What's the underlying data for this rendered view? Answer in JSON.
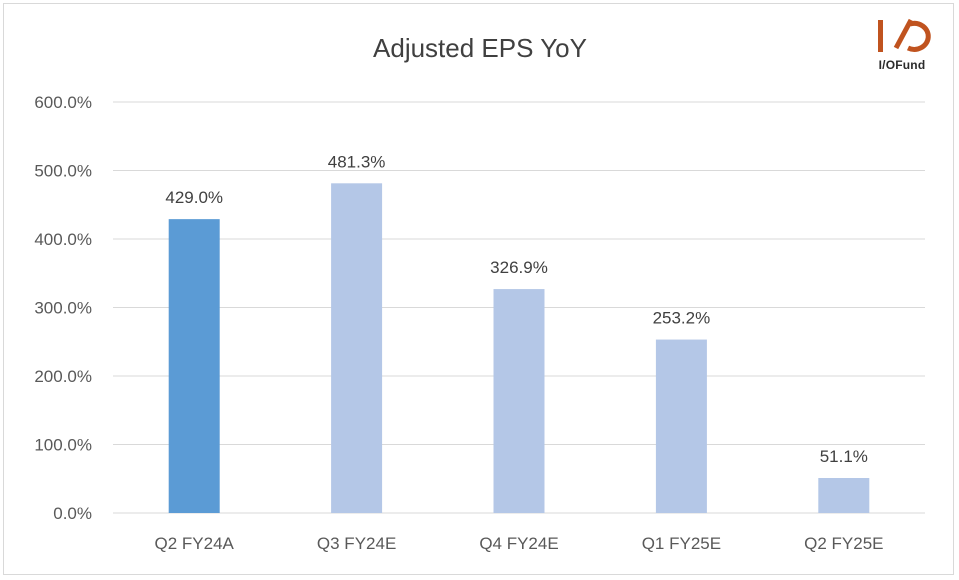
{
  "logo": {
    "text": "I/OFund",
    "color": "#c0531f"
  },
  "colors": {
    "actual": "#5b9bd5",
    "estimate": "#b4c7e7",
    "grid": "#d9d9d9",
    "text": "#595959",
    "title": "#404040"
  },
  "chart_data": {
    "type": "bar",
    "title": "Adjusted EPS YoY",
    "xlabel": "",
    "ylabel": "",
    "categories": [
      "Q2 FY24A",
      "Q3 FY24E",
      "Q4 FY24E",
      "Q1 FY25E",
      "Q2 FY25E"
    ],
    "values": [
      429.0,
      481.3,
      326.9,
      253.2,
      51.1
    ],
    "value_labels": [
      "429.0%",
      "481.3%",
      "326.9%",
      "253.2%",
      "51.1%"
    ],
    "bar_colors": [
      "#5b9bd5",
      "#b4c7e7",
      "#b4c7e7",
      "#b4c7e7",
      "#b4c7e7"
    ],
    "ylim": [
      0,
      600
    ],
    "yticks": [
      0,
      100,
      200,
      300,
      400,
      500,
      600
    ],
    "ytick_labels": [
      "0.0%",
      "100.0%",
      "200.0%",
      "300.0%",
      "400.0%",
      "500.0%",
      "600.0%"
    ],
    "grid": true,
    "legend": "none"
  }
}
